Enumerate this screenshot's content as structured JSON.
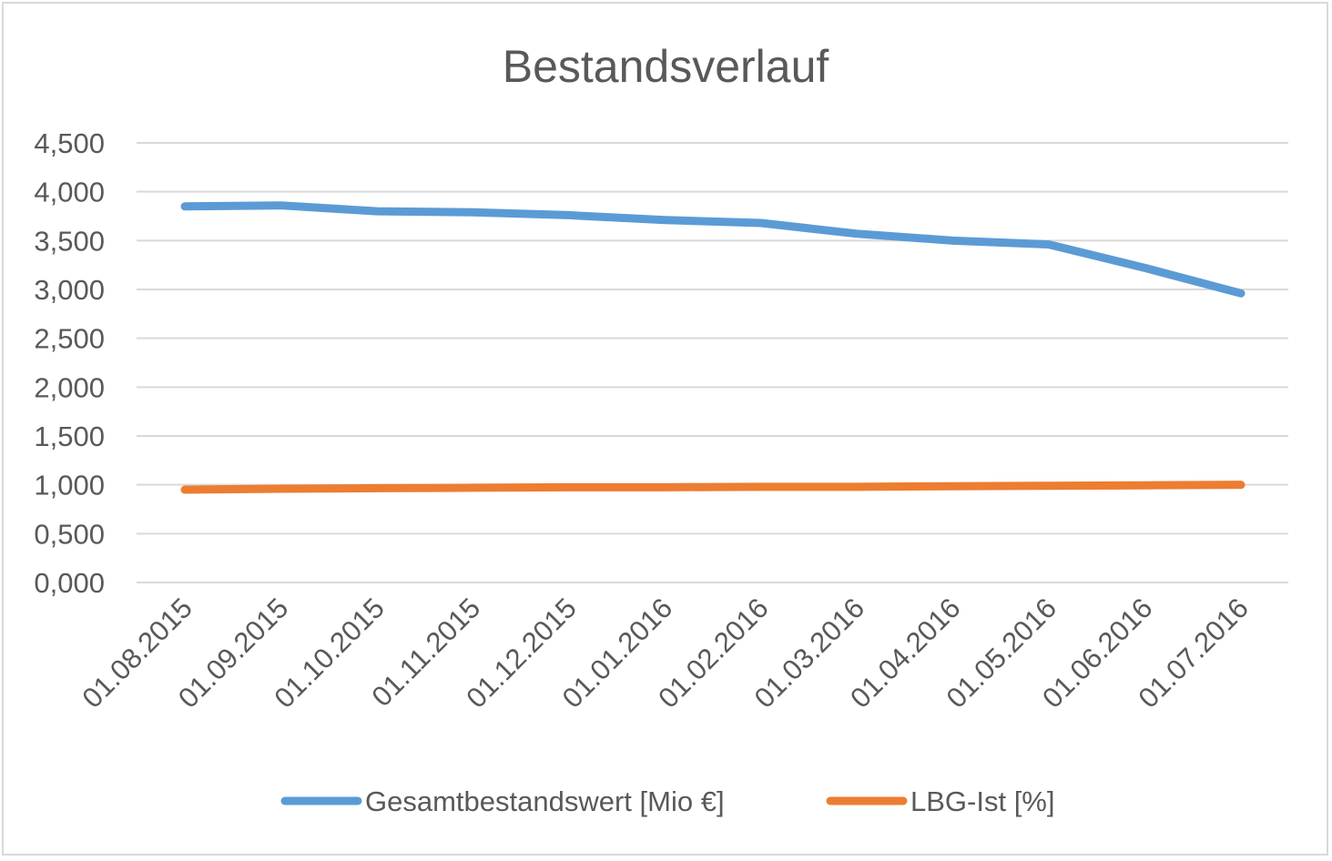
{
  "chart_data": {
    "type": "line",
    "title": "Bestandsverlauf",
    "xlabel": "",
    "ylabel": "",
    "ylim": [
      0,
      4.5
    ],
    "y_ticks": [
      "0,000",
      "0,500",
      "1,000",
      "1,500",
      "2,000",
      "2,500",
      "3,000",
      "3,500",
      "4,000",
      "4,500"
    ],
    "y_tick_values": [
      0,
      0.5,
      1,
      1.5,
      2,
      2.5,
      3,
      3.5,
      4,
      4.5
    ],
    "categories": [
      "01.08.2015",
      "01.09.2015",
      "01.10.2015",
      "01.11.2015",
      "01.12.2015",
      "01.01.2016",
      "01.02.2016",
      "01.03.2016",
      "01.04.2016",
      "01.05.2016",
      "01.06.2016",
      "01.07.2016"
    ],
    "grid": true,
    "legend_position": "bottom",
    "series": [
      {
        "name": "Gesamtbestandswert [Mio €]",
        "color": "#5b9bd5",
        "values": [
          3.85,
          3.86,
          3.8,
          3.79,
          3.76,
          3.71,
          3.68,
          3.57,
          3.5,
          3.46,
          3.22,
          2.96
        ]
      },
      {
        "name": "LBG-Ist [%]",
        "color": "#ed7d31",
        "values": [
          0.95,
          0.96,
          0.965,
          0.97,
          0.975,
          0.975,
          0.98,
          0.98,
          0.985,
          0.99,
          0.995,
          1.0
        ]
      }
    ]
  }
}
